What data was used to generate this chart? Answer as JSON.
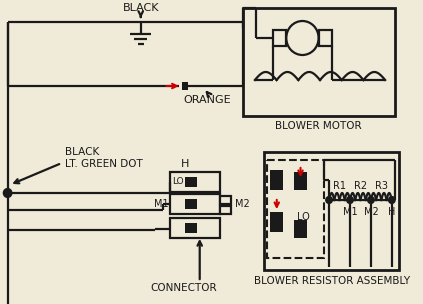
{
  "bg_color": "#f0ead8",
  "line_color": "#1a1a1a",
  "red_color": "#cc0000",
  "labels": {
    "black": "BLACK",
    "orange": "ORANGE",
    "black_lt_green": "BLACK\nLT. GREEN DOT",
    "blower_motor": "BLOWER MOTOR",
    "connector": "CONNECTOR",
    "blower_resistor": "BLOWER RESISTOR ASSEMBLY",
    "H": "H",
    "LO": "LO",
    "M1": "M1",
    "M2": "M2",
    "R1": "R1",
    "R2": "R2",
    "R3": "R3"
  }
}
